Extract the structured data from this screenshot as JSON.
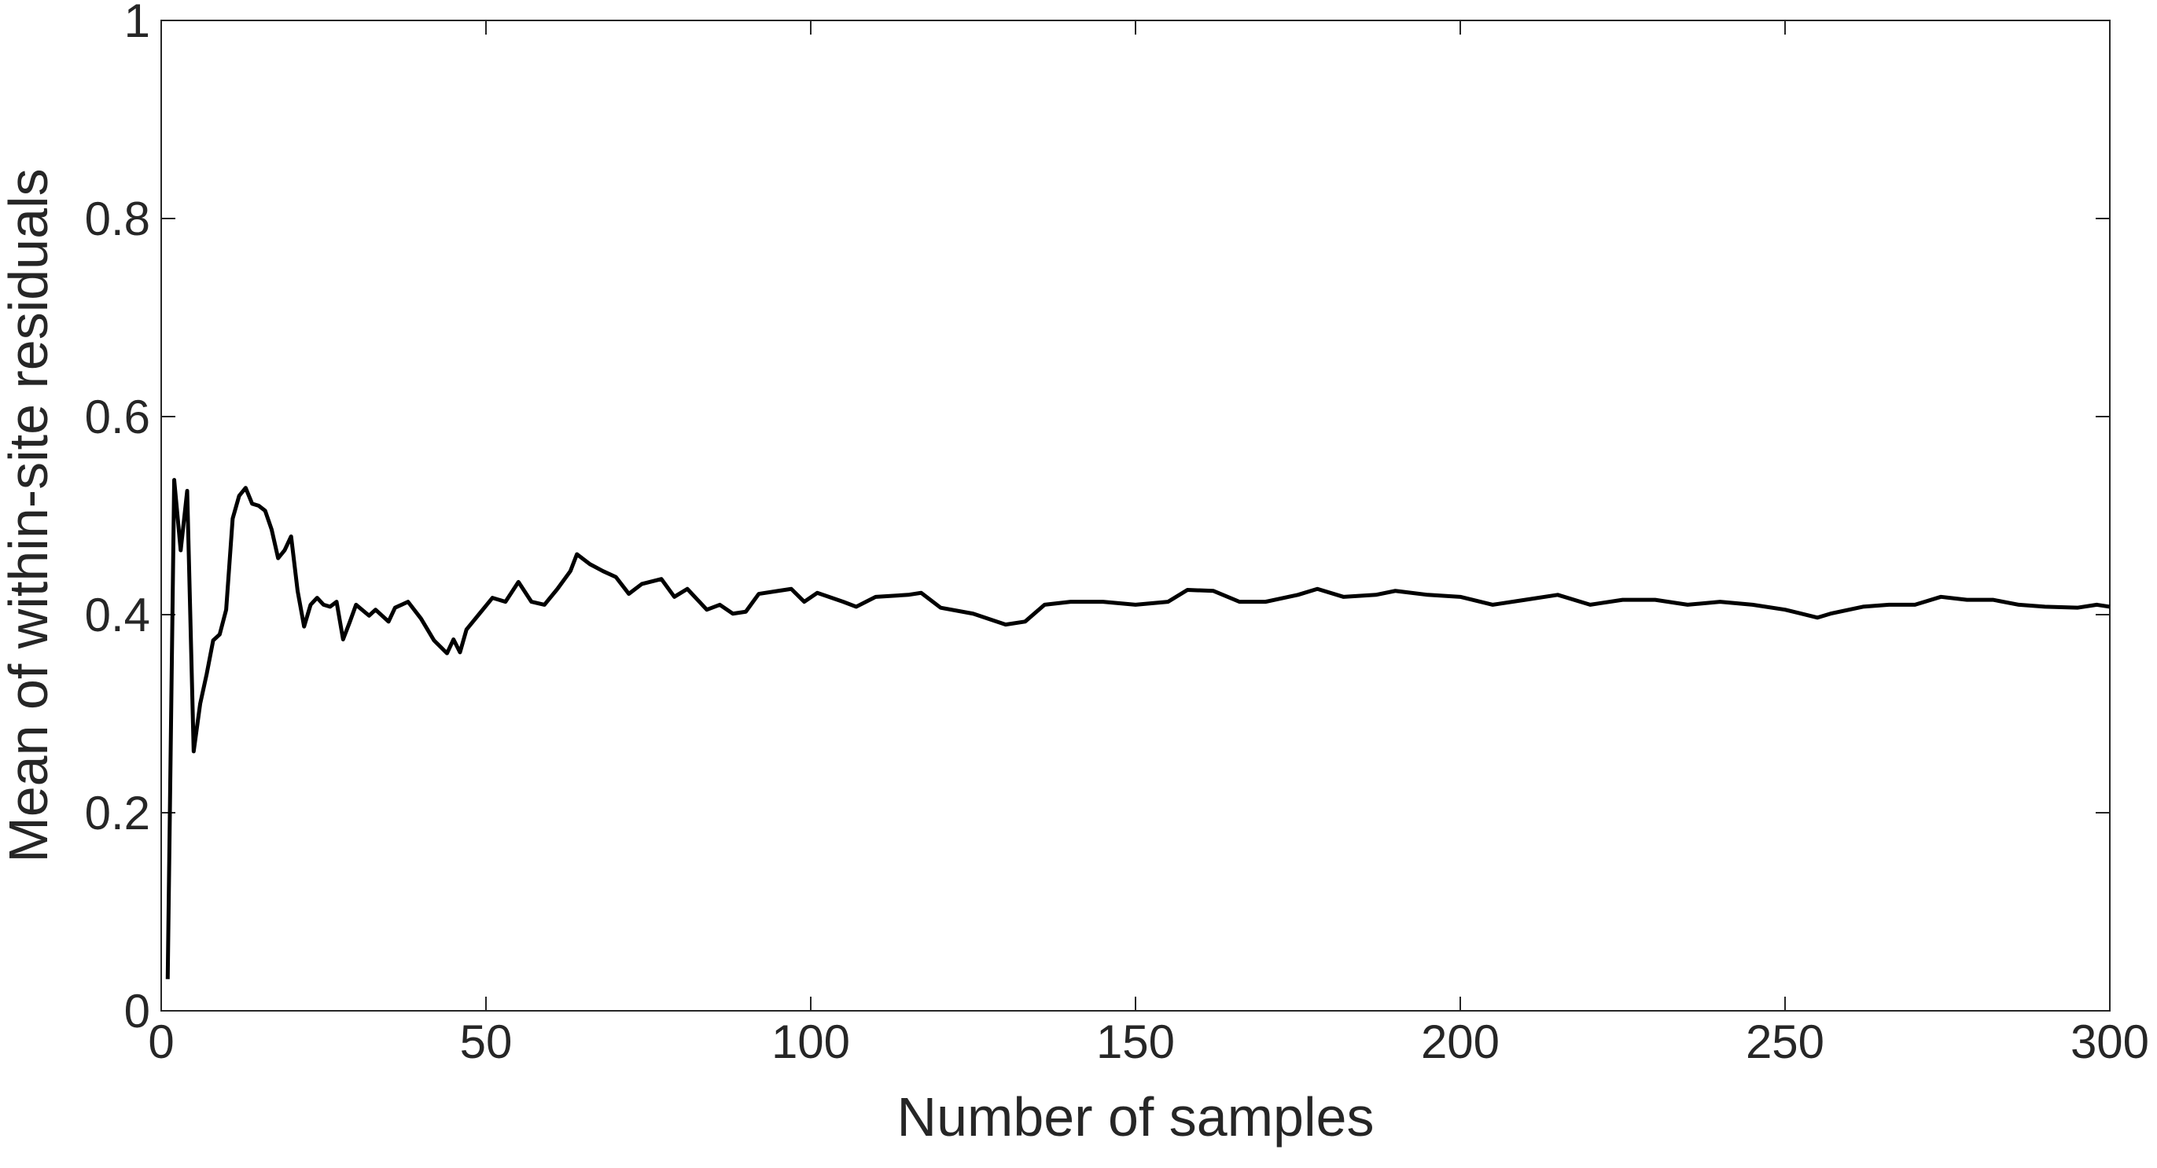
{
  "chart_data": {
    "type": "line",
    "xlabel": "Number of samples",
    "ylabel": "Mean of within-site residuals",
    "x": [
      1,
      2,
      3,
      4,
      5,
      6,
      7,
      8,
      9,
      10,
      11,
      12,
      13,
      14,
      15,
      16,
      17,
      18,
      19,
      20,
      21,
      22,
      23,
      24,
      25,
      26,
      27,
      28,
      29,
      30,
      32,
      33,
      35,
      36,
      38,
      40,
      42,
      44,
      45,
      46,
      47,
      49,
      51,
      53,
      55,
      57,
      59,
      61,
      63,
      64,
      66,
      68,
      70,
      72,
      74,
      77,
      79,
      81,
      84,
      86,
      88,
      90,
      92,
      95,
      97,
      99,
      101,
      105,
      107,
      110,
      115,
      117,
      120,
      125,
      130,
      133,
      136,
      140,
      145,
      150,
      155,
      158,
      162,
      166,
      170,
      175,
      178,
      182,
      187,
      190,
      195,
      200,
      205,
      210,
      215,
      220,
      225,
      230,
      235,
      240,
      245,
      250,
      255,
      257,
      262,
      266,
      270,
      274,
      278,
      282,
      286,
      290,
      295,
      298,
      300
    ],
    "series": [
      {
        "name": "Mean",
        "color": "#000000",
        "values": [
          0.032,
          0.536,
          0.465,
          0.525,
          0.262,
          0.31,
          0.34,
          0.374,
          0.38,
          0.405,
          0.497,
          0.52,
          0.528,
          0.512,
          0.51,
          0.505,
          0.486,
          0.457,
          0.465,
          0.479,
          0.424,
          0.388,
          0.41,
          0.417,
          0.41,
          0.408,
          0.413,
          0.375,
          0.392,
          0.41,
          0.399,
          0.405,
          0.393,
          0.407,
          0.413,
          0.396,
          0.374,
          0.361,
          0.375,
          0.362,
          0.385,
          0.401,
          0.417,
          0.413,
          0.433,
          0.413,
          0.41,
          0.426,
          0.444,
          0.461,
          0.451,
          0.444,
          0.438,
          0.421,
          0.431,
          0.436,
          0.418,
          0.426,
          0.405,
          0.41,
          0.401,
          0.403,
          0.421,
          0.424,
          0.426,
          0.413,
          0.422,
          0.413,
          0.408,
          0.418,
          0.42,
          0.422,
          0.407,
          0.401,
          0.39,
          0.393,
          0.41,
          0.413,
          0.413,
          0.41,
          0.413,
          0.425,
          0.424,
          0.413,
          0.413,
          0.42,
          0.426,
          0.418,
          0.42,
          0.424,
          0.42,
          0.418,
          0.41,
          0.415,
          0.42,
          0.41,
          0.415,
          0.415,
          0.41,
          0.413,
          0.41,
          0.405,
          0.397,
          0.401,
          0.408,
          0.41,
          0.41,
          0.418,
          0.415,
          0.415,
          0.41,
          0.408,
          0.407,
          0.41,
          0.408
        ]
      }
    ],
    "xlim": [
      0,
      300
    ],
    "xticks": [
      0,
      50,
      100,
      150,
      200,
      250,
      300
    ],
    "ylim": [
      0,
      1
    ],
    "yticks": [
      0,
      0.2,
      0.4,
      0.6,
      0.8,
      1
    ]
  }
}
